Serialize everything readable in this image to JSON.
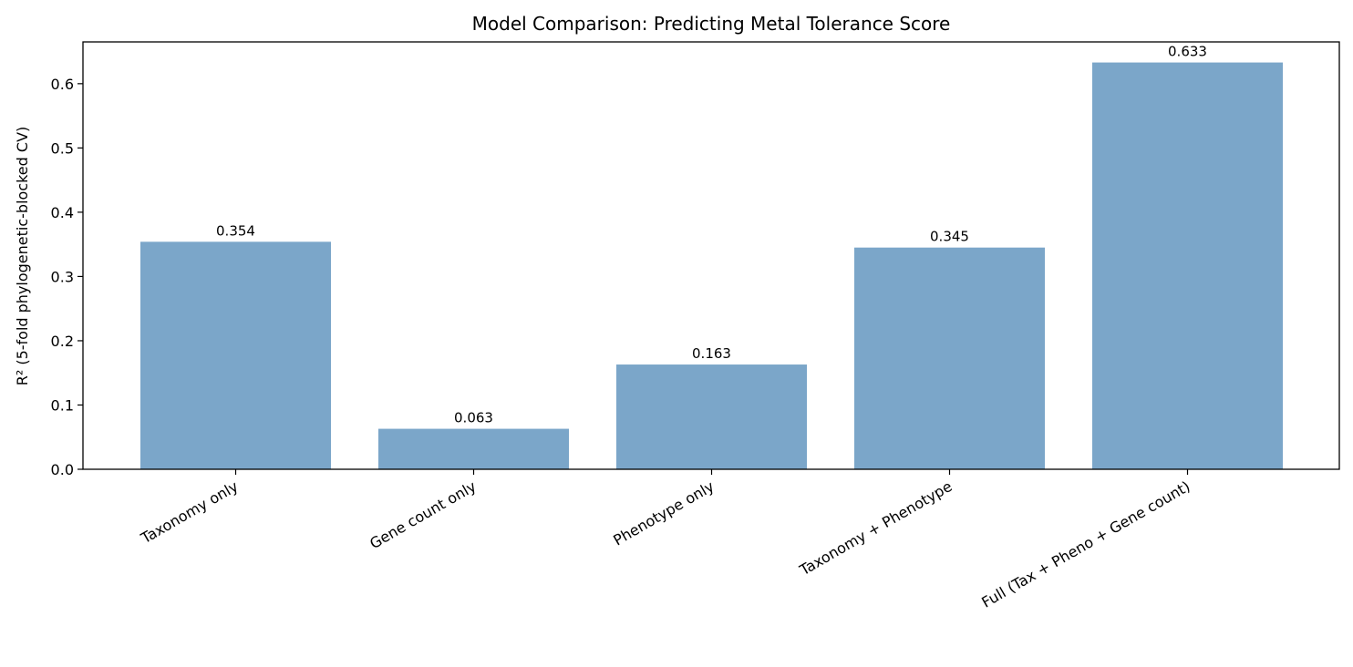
{
  "chart_data": {
    "type": "bar",
    "title": "Model Comparison: Predicting Metal Tolerance Score",
    "xlabel": "",
    "ylabel": "R² (5-fold phylogenetic-blocked CV)",
    "categories": [
      "Taxonomy only",
      "Gene count only",
      "Phenotype only",
      "Taxonomy + Phenotype",
      "Full (Tax + Pheno + Gene count)"
    ],
    "values": [
      0.354,
      0.063,
      0.163,
      0.345,
      0.633
    ],
    "value_labels": [
      "0.354",
      "0.063",
      "0.163",
      "0.345",
      "0.633"
    ],
    "ylim": [
      0,
      0.665
    ],
    "yticks": [
      0.0,
      0.1,
      0.2,
      0.3,
      0.4,
      0.5,
      0.6
    ],
    "ytick_labels": [
      "0.0",
      "0.1",
      "0.2",
      "0.3",
      "0.4",
      "0.5",
      "0.6"
    ],
    "grid": false,
    "bar_color": "#7ba6c9"
  }
}
